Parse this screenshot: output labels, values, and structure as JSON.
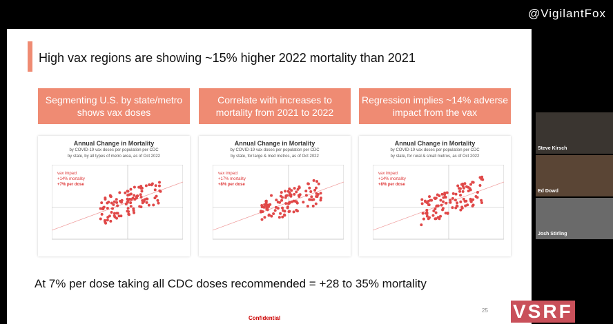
{
  "watermark": "@VigilantFox",
  "slide": {
    "title": "High vax regions are showing ~15% higher 2022 mortality than 2021",
    "boxes": [
      "Segmenting U.S. by state/metro shows vax doses",
      "Correlate with increases to mortality from 2021 to 2022",
      "Regression implies ~14% adverse impact from the vax"
    ],
    "charts": [
      {
        "title": "Annual Change in Mortality",
        "subtitle": [
          "by COVID-19 vax doses per population per CDC",
          "by state, by all types of metro area, as of Oct 2022"
        ],
        "annotation": [
          "vax impact",
          "+14% mortality",
          "+7% per dose"
        ]
      },
      {
        "title": "Annual Change in Mortality",
        "subtitle": [
          "by COVID-19 vax doses per population per CDC",
          "by state, for large & med metros, as of Oct 2022"
        ],
        "annotation": [
          "vax impact",
          "+17% mortality",
          "+8% per dose"
        ]
      },
      {
        "title": "Annual Change in Mortality",
        "subtitle": [
          "by COVID-19 vax doses per population per CDC",
          "by state, for rural & small metros, as of Oct 2022"
        ],
        "annotation": [
          "vax impact",
          "+14% mortality",
          "+8% per dose"
        ]
      }
    ],
    "conclusion": "At 7% per dose taking all CDC doses recommended = +28 to 35% mortality",
    "footer": "Confidential",
    "page": "25"
  },
  "participants": [
    "Steve Kirsch",
    "Ed Dowd",
    "Josh Stirling"
  ],
  "logo": "VSRF"
}
